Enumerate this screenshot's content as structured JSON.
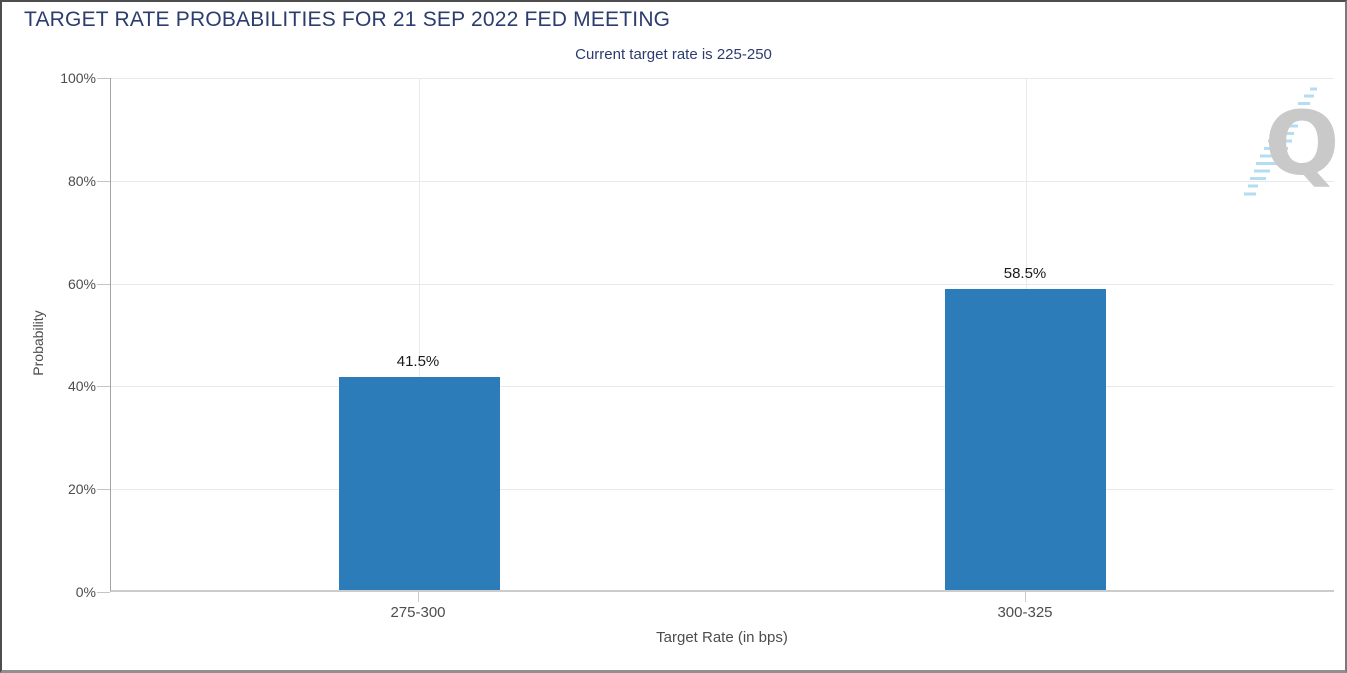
{
  "chart_data": {
    "type": "bar",
    "title": "TARGET RATE PROBABILITIES FOR 21 SEP 2022 FED MEETING",
    "subtitle": "Current target rate is 225-250",
    "categories": [
      "275-300",
      "300-325"
    ],
    "values": [
      41.5,
      58.5
    ],
    "value_labels": [
      "41.5%",
      "58.5%"
    ],
    "xlabel": "Target Rate (in bps)",
    "ylabel": "Probability",
    "ylim": [
      0,
      100
    ],
    "yticks": [
      "0%",
      "20%",
      "40%",
      "60%",
      "80%",
      "100%"
    ],
    "grid": true,
    "legend_position": "none",
    "bar_color": "#2b7cb8"
  },
  "watermark": {
    "letter": "Q"
  },
  "colors": {
    "title": "#2c3c6e",
    "axis_text": "#4d4d4d",
    "value_label": "#1a1a1a",
    "gridline": "#e9e9e9",
    "axis_line": "#a3a3a3",
    "baseline": "#cccccc",
    "bar": "#2b7cb8",
    "watermark_letter": "#c9c9c9",
    "watermark_stripe": "#b5ddf2"
  }
}
